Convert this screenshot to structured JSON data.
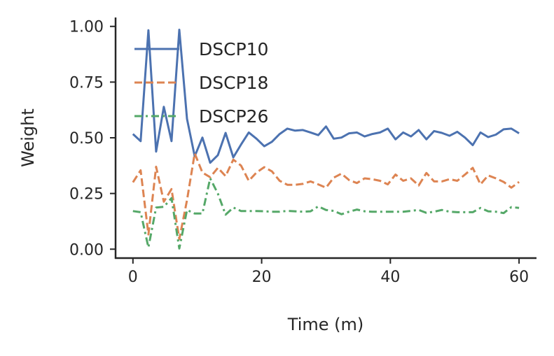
{
  "chart_data": {
    "type": "line",
    "title": "",
    "xlabel": "Time (m)",
    "ylabel": "Weight",
    "xlim": [
      -2.7,
      62.6
    ],
    "ylim": [
      -0.04,
      1.04
    ],
    "xticks": [
      0,
      20,
      40,
      60
    ],
    "xtick_labels": [
      "0",
      "20",
      "40",
      "60"
    ],
    "yticks": [
      0,
      0.25,
      0.5,
      0.75,
      1.0
    ],
    "ytick_labels": [
      "0.00",
      "0.25",
      "0.50",
      "0.75",
      "1.00"
    ],
    "grid": false,
    "legend_placement": "top-left",
    "x": [
      0,
      1.2,
      2.4,
      3.6,
      4.8,
      6,
      7.2,
      8.4,
      9.6,
      10.8,
      12,
      13.2,
      14.4,
      15.6,
      16.8,
      18,
      19.2,
      20.4,
      21.6,
      22.8,
      24,
      25.2,
      26.4,
      27.6,
      28.8,
      30,
      31.2,
      32.4,
      33.6,
      34.8,
      36,
      37.2,
      38.4,
      39.6,
      40.8,
      42,
      43.2,
      44.4,
      45.6,
      46.8,
      48,
      49.2,
      50.4,
      51.6,
      52.8,
      54,
      55.2,
      56.4,
      57.6,
      58.8,
      60
    ],
    "series": [
      {
        "name": "DSCP10",
        "color": "#4c72b0",
        "style": "solid",
        "values": [
          0.517,
          0.485,
          0.983,
          0.438,
          0.639,
          0.485,
          0.985,
          0.585,
          0.417,
          0.501,
          0.388,
          0.422,
          0.522,
          0.412,
          0.47,
          0.524,
          0.496,
          0.462,
          0.482,
          0.517,
          0.541,
          0.532,
          0.535,
          0.524,
          0.512,
          0.551,
          0.496,
          0.501,
          0.52,
          0.524,
          0.506,
          0.517,
          0.524,
          0.541,
          0.493,
          0.524,
          0.506,
          0.535,
          0.493,
          0.53,
          0.522,
          0.509,
          0.527,
          0.501,
          0.467,
          0.524,
          0.503,
          0.514,
          0.538,
          0.541,
          0.52
        ]
      },
      {
        "name": "DSCP18",
        "color": "#dd8452",
        "style": "dashed",
        "values": [
          0.3,
          0.354,
          0.066,
          0.37,
          0.213,
          0.27,
          0.045,
          0.22,
          0.43,
          0.344,
          0.323,
          0.365,
          0.328,
          0.402,
          0.375,
          0.307,
          0.344,
          0.368,
          0.349,
          0.307,
          0.289,
          0.289,
          0.293,
          0.304,
          0.291,
          0.276,
          0.321,
          0.339,
          0.31,
          0.297,
          0.318,
          0.314,
          0.307,
          0.291,
          0.335,
          0.307,
          0.318,
          0.286,
          0.342,
          0.304,
          0.304,
          0.314,
          0.307,
          0.335,
          0.365,
          0.291,
          0.331,
          0.318,
          0.302,
          0.276,
          0.302
        ]
      },
      {
        "name": "DSCP26",
        "color": "#55a868",
        "style": "dashdot",
        "values": [
          0.171,
          0.166,
          0.008,
          0.187,
          0.19,
          0.229,
          0.003,
          0.176,
          0.16,
          0.16,
          0.318,
          0.249,
          0.155,
          0.187,
          0.171,
          0.171,
          0.171,
          0.17,
          0.168,
          0.168,
          0.172,
          0.17,
          0.168,
          0.17,
          0.192,
          0.176,
          0.172,
          0.157,
          0.168,
          0.178,
          0.17,
          0.168,
          0.168,
          0.168,
          0.168,
          0.168,
          0.172,
          0.176,
          0.163,
          0.168,
          0.176,
          0.168,
          0.166,
          0.166,
          0.166,
          0.185,
          0.17,
          0.168,
          0.162,
          0.189,
          0.185
        ]
      }
    ]
  }
}
